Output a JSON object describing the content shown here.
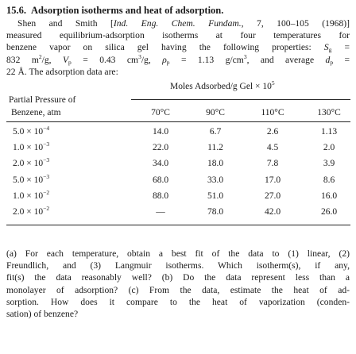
{
  "heading": {
    "number": "15.6.",
    "title": "Adsorption isotherms and heat of adsorption."
  },
  "intro": {
    "l1_pre": "Shen and Smith [",
    "l1_journal": "Ind. Eng. Chem. Fundam.",
    "l1_post": ", 7, 100–105 (1968)]",
    "l2": "measured equilibrium-adsorption isotherms at four temperatures for",
    "l3": "benzene vapor on silica gel having the following properties:",
    "l4_sg": "832 m",
    "l4_sg_exp": "2",
    "l4_sg_unit": "/g,",
    "l4_vp": "0.43 cm",
    "l4_vp_exp": "3",
    "l4_vp_unit": "/g,",
    "l4_rho": "1.13 g/cm",
    "l4_rho_exp": "3",
    "l4_rho_post": ", and average",
    "l5": "22 Å. The adsorption data are:"
  },
  "table": {
    "group_header": "Moles Adsorbed/g Gel × 10",
    "group_header_exp": "5",
    "row_header_line1": "Partial Pressure of",
    "row_header_line2": "Benzene, atm",
    "columns": [
      "70°C",
      "90°C",
      "110°C",
      "130°C"
    ],
    "rows": [
      {
        "p_mant": "5.0 × 10",
        "p_exp": "−4",
        "values": [
          "14.0",
          "6.7",
          "2.6",
          "1.13"
        ]
      },
      {
        "p_mant": "1.0 × 10",
        "p_exp": "−3",
        "values": [
          "22.0",
          "11.2",
          "4.5",
          "2.0"
        ]
      },
      {
        "p_mant": "2.0 × 10",
        "p_exp": "−3",
        "values": [
          "34.0",
          "18.0",
          "7.8",
          "3.9"
        ]
      },
      {
        "p_mant": "5.0 × 10",
        "p_exp": "−3",
        "values": [
          "68.0",
          "33.0",
          "17.0",
          "8.6"
        ]
      },
      {
        "p_mant": "1.0 × 10",
        "p_exp": "−2",
        "values": [
          "88.0",
          "51.0",
          "27.0",
          "16.0"
        ]
      },
      {
        "p_mant": "2.0 × 10",
        "p_exp": "−2",
        "values": [
          "—",
          "78.0",
          "42.0",
          "26.0"
        ]
      }
    ]
  },
  "question": {
    "lines": [
      "(a) For each temperature, obtain a best fit of the data to (1) linear, (2)",
      "Freundlich, and (3) Langmuir isotherms. Which isotherm(s), if any,",
      "fit(s) the data reasonably well? (b) Do the data represent less than a",
      "monolayer of adsorption? (c) From the data, estimate the heat of ad-",
      "sorption. How does it compare to the heat of vaporization (conden-",
      "sation) of benzene?"
    ]
  }
}
